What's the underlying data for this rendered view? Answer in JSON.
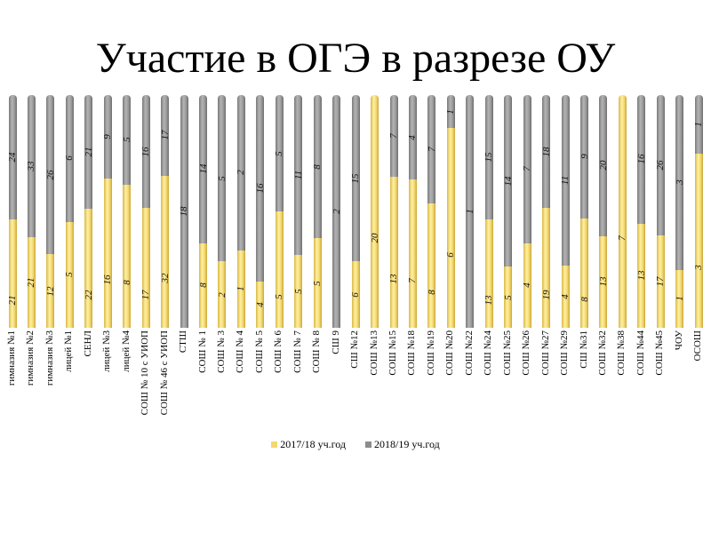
{
  "title": "Участие в ОГЭ в разрезе ОУ",
  "legend": [
    {
      "label": "2017/18 уч.год",
      "color": "#f3d870"
    },
    {
      "label": "2018/19 уч.год",
      "color": "#8c8c8c"
    }
  ],
  "chart_data": {
    "type": "bar",
    "stacked": "percent",
    "title": "Участие в ОГЭ в разрезе ОУ",
    "xlabel": "",
    "ylabel": "",
    "ylim": [
      0,
      100
    ],
    "grid": false,
    "legend_position": "bottom",
    "categories": [
      "гимназия №1",
      "гимназия №2",
      "гимназия №3",
      "лицей  №1",
      "СЕНЛ",
      "лицей №3",
      "лицей №4",
      "СОШ №  10 с УИОП",
      "СОШ №  46 с УИОП",
      "СТШ",
      "СОШ № 1",
      "СОШ № 3",
      "СОШ № 4",
      "СОШ № 5",
      "СОШ № 6",
      "СОШ № 7",
      "СОШ № 8",
      "СШ 9",
      "СШ №12",
      "СОШ №13",
      "СОШ №15",
      "СОШ №18",
      "СОШ №19",
      "СОШ №20",
      "СОШ №22",
      "СОШ №24",
      "СОШ №25",
      "СОШ №26",
      "СОШ №27",
      "СОШ №29",
      "СШ №31",
      "СОШ №32",
      "СОШ №38",
      "СОШ №44",
      "СОШ №45",
      "ЧОУ",
      "ОСОШ"
    ],
    "series": [
      {
        "name": "2017/18 уч.год",
        "color": "#f3d870",
        "values": [
          21,
          21,
          12,
          5,
          22,
          16,
          8,
          17,
          32,
          0,
          8,
          2,
          1,
          4,
          5,
          5,
          5,
          0,
          6,
          20,
          13,
          7,
          8,
          6,
          0,
          13,
          5,
          4,
          19,
          4,
          8,
          13,
          7,
          13,
          17,
          1,
          3
        ]
      },
      {
        "name": "2018/19 уч.год",
        "color": "#8c8c8c",
        "values": [
          24,
          33,
          26,
          6,
          21,
          9,
          5,
          16,
          17,
          18,
          14,
          5,
          2,
          16,
          5,
          11,
          8,
          2,
          15,
          0,
          7,
          4,
          7,
          1,
          1,
          15,
          14,
          7,
          18,
          11,
          9,
          20,
          0,
          16,
          26,
          3,
          1
        ]
      }
    ]
  }
}
